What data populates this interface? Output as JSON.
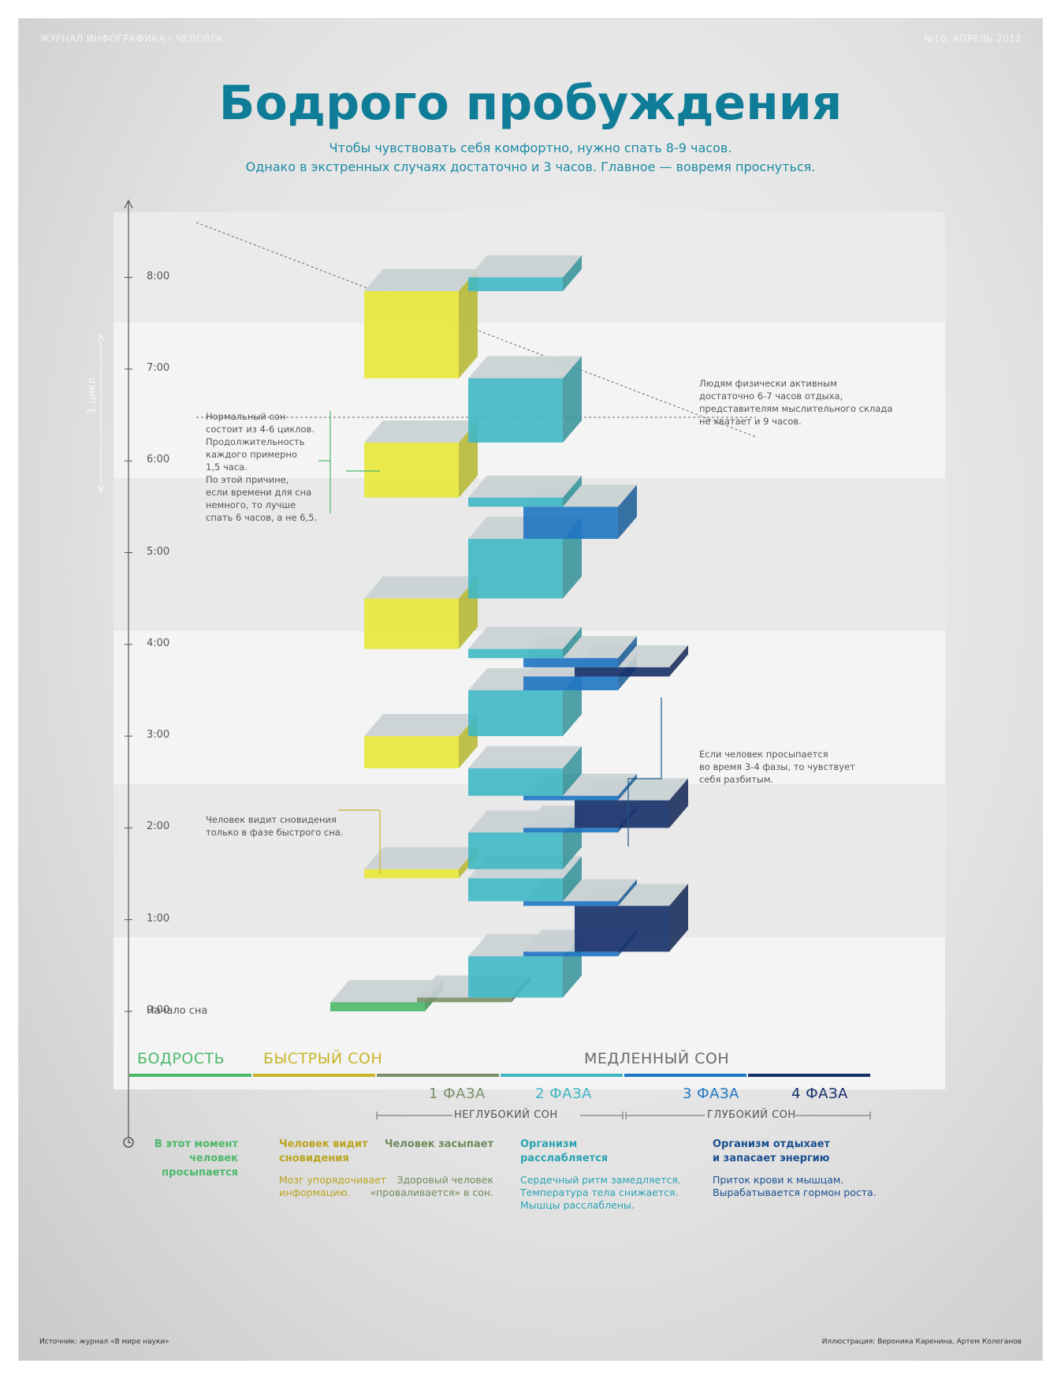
{
  "header": {
    "left": "ЖУРНАЛ ИНФОГРАФИКА › ЧЕЛОВЕК",
    "right": "№10, АПРЕЛЬ 2012"
  },
  "title": "Бодрого пробуждения",
  "subtitle_lines": [
    "Чтобы чувствовать себя комфортно, нужно спать 8-9 часов.",
    "Однако в экстренных случаях достаточно и 3 часов. Главное — вовремя проснуться."
  ],
  "axis": {
    "ticks": [
      "8:00",
      "7:00",
      "6:00",
      "5:00",
      "4:00",
      "3:00",
      "2:00",
      "1:00",
      "0:00"
    ],
    "start_label": "Начало сна",
    "cycle_label": "1 цикл"
  },
  "notes": {
    "cycles": [
      "Нормальный сон",
      "состоит из 4-6 циклов.",
      "Продолжительность",
      "каждого примерно",
      "1,5 часа."
    ],
    "reason": [
      "По этой причине,",
      "если времени для сна",
      "немного, то лучше",
      "спать 6 часов, а не 6,5."
    ],
    "active": [
      "Людям физически активным",
      "достаточно 6-7 часов отдыха,",
      "представителям мыслительного склада",
      "не хватает и 9 часов."
    ],
    "deep_wake": [
      "Если человек просыпается",
      "во время 3-4 фазы, то чувствует",
      "себя разбитым."
    ],
    "dreams": [
      "Человек видит сновидения",
      "только в фазе быстрого сна."
    ]
  },
  "legend": {
    "wake": "БОДРОСТЬ",
    "rem": "БЫСТРЫЙ СОН",
    "slow": "МЕДЛЕННЫЙ СОН",
    "phases": [
      "1 ФАЗА",
      "2 ФАЗА",
      "3 ФАЗА",
      "4 ФАЗА"
    ],
    "light": "НЕГЛУБОКИЙ СОН",
    "deep": "ГЛУБОКИЙ СОН"
  },
  "descriptions": {
    "wake": {
      "head": [
        "В этот момент",
        "человек просыпается"
      ]
    },
    "rem": {
      "head": [
        "Человек видит",
        "сновидения"
      ],
      "body": [
        "Мозг упорядочивает",
        "информацию."
      ]
    },
    "p1": {
      "head": [
        "Человек засыпает"
      ],
      "body": [
        "Здоровый человек",
        "«проваливается» в сон."
      ]
    },
    "p2": {
      "head": [
        "Организм",
        "расслабляется"
      ],
      "body": [
        "Сердечный ритм замедляется.",
        "Температура тела снижается.",
        "Мышцы расслаблены."
      ]
    },
    "deep": {
      "head": [
        "Организм отдыхает",
        "и запасает энергию"
      ],
      "body": [
        "Приток крови к мышцам.",
        "Вырабатывается гормон роста."
      ]
    }
  },
  "footer": {
    "source": "Источник: журнал «В мире науки»",
    "credits": "Иллюстрация: Вероника Каренина, Артем Колеганов"
  },
  "colors": {
    "wake": "#4cb86a",
    "rem": "#e8e83a",
    "p1": "#7a9068",
    "p2": "#3fb8c4",
    "p3": "#1f76c2",
    "p4": "#16306a",
    "title": "#0f7c98"
  },
  "hypnogram": [
    {
      "stage": "wake",
      "from": 0.0,
      "to": 0.1
    },
    {
      "stage": "p1",
      "from": 0.1,
      "to": 0.15
    },
    {
      "stage": "p2",
      "from": 0.15,
      "to": 0.6
    },
    {
      "stage": "p3",
      "from": 0.6,
      "to": 0.65
    },
    {
      "stage": "p4",
      "from": 0.65,
      "to": 1.15
    },
    {
      "stage": "p3",
      "from": 1.15,
      "to": 1.2
    },
    {
      "stage": "p2",
      "from": 1.2,
      "to": 1.45
    },
    {
      "stage": "rem",
      "from": 1.45,
      "to": 1.55
    },
    {
      "stage": "p2",
      "from": 1.55,
      "to": 1.95
    },
    {
      "stage": "p3",
      "from": 1.95,
      "to": 2.0
    },
    {
      "stage": "p4",
      "from": 2.0,
      "to": 2.3
    },
    {
      "stage": "p3",
      "from": 2.3,
      "to": 2.35
    },
    {
      "stage": "p2",
      "from": 2.35,
      "to": 2.65
    },
    {
      "stage": "rem",
      "from": 2.65,
      "to": 3.0
    },
    {
      "stage": "p2",
      "from": 3.0,
      "to": 3.5
    },
    {
      "stage": "p3",
      "from": 3.5,
      "to": 3.65
    },
    {
      "stage": "p4",
      "from": 3.65,
      "to": 3.75
    },
    {
      "stage": "p3",
      "from": 3.75,
      "to": 3.85
    },
    {
      "stage": "p2",
      "from": 3.85,
      "to": 3.95
    },
    {
      "stage": "rem",
      "from": 3.95,
      "to": 4.5
    },
    {
      "stage": "p2",
      "from": 4.5,
      "to": 5.15
    },
    {
      "stage": "p3",
      "from": 5.15,
      "to": 5.5
    },
    {
      "stage": "p2",
      "from": 5.5,
      "to": 5.6
    },
    {
      "stage": "rem",
      "from": 5.6,
      "to": 6.2
    },
    {
      "stage": "p2",
      "from": 6.2,
      "to": 6.9
    },
    {
      "stage": "rem",
      "from": 6.9,
      "to": 7.85
    },
    {
      "stage": "p2",
      "from": 7.85,
      "to": 8.0
    }
  ]
}
